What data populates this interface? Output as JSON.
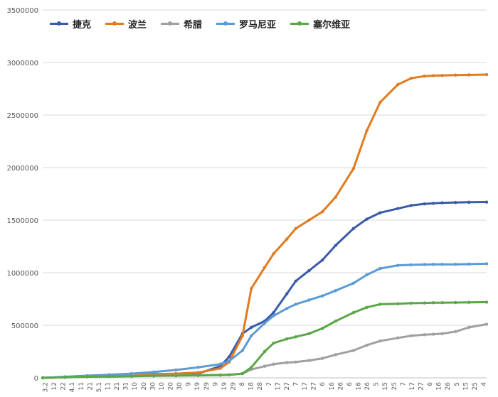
{
  "chart_data": {
    "type": "line",
    "title": "",
    "xlabel": "",
    "ylabel": "",
    "ylim": [
      0,
      3500000
    ],
    "yticks": [
      0,
      500000,
      1000000,
      1500000,
      2000000,
      2500000,
      3000000,
      3500000
    ],
    "ytick_labels": [
      "0",
      "500000",
      "1000000",
      "1500000",
      "2000000",
      "2500000",
      "3000000",
      "3500000"
    ],
    "grid": "horizontal",
    "legend_position": "top-left",
    "x_tick_labels": [
      "3.2",
      "12",
      "22",
      "4.1",
      "11",
      "21",
      "5.1",
      "11",
      "21",
      "31",
      "10",
      "20",
      "30",
      "10",
      "20",
      "30",
      "9",
      "19",
      "29",
      "9",
      "19",
      "29",
      "8",
      "18",
      "28",
      "7",
      "17",
      "27",
      "7",
      "17",
      "27",
      "6",
      "16",
      "26",
      "6",
      "16",
      "26",
      "5",
      "15",
      "25",
      "7",
      "17",
      "27",
      "6",
      "16",
      "26",
      "5",
      "15",
      "25",
      "4"
    ],
    "x": [
      0,
      0.05,
      0.1,
      0.15,
      0.2,
      0.25,
      0.3,
      0.35,
      0.4,
      0.42,
      0.45,
      0.47,
      0.5,
      0.52,
      0.55,
      0.57,
      0.6,
      0.63,
      0.66,
      0.7,
      0.73,
      0.76,
      0.8,
      0.83,
      0.86,
      0.88,
      0.9,
      0.93,
      0.96,
      1.0
    ],
    "series": [
      {
        "name": "捷克",
        "color": "#3a5ba8",
        "values": [
          0,
          5000,
          15000,
          25000,
          30000,
          35000,
          35000,
          40000,
          110000,
          200000,
          420000,
          480000,
          540000,
          620000,
          800000,
          920000,
          1020000,
          1120000,
          1260000,
          1420000,
          1510000,
          1570000,
          1610000,
          1640000,
          1655000,
          1660000,
          1665000,
          1668000,
          1670000,
          1672000
        ]
      },
      {
        "name": "波兰",
        "color": "#e07b20",
        "values": [
          0,
          5000,
          15000,
          25000,
          30000,
          35000,
          40000,
          50000,
          90000,
          150000,
          400000,
          850000,
          1050000,
          1180000,
          1320000,
          1420000,
          1500000,
          1580000,
          1720000,
          1990000,
          2350000,
          2620000,
          2790000,
          2850000,
          2870000,
          2875000,
          2877000,
          2880000,
          2882000,
          2885000
        ]
      },
      {
        "name": "希腊",
        "color": "#a0a0a0",
        "values": [
          0,
          5000,
          10000,
          15000,
          18000,
          20000,
          22000,
          25000,
          28000,
          30000,
          40000,
          80000,
          110000,
          130000,
          145000,
          150000,
          165000,
          185000,
          220000,
          260000,
          310000,
          350000,
          380000,
          400000,
          410000,
          415000,
          420000,
          440000,
          480000,
          510000
        ]
      },
      {
        "name": "罗马尼亚",
        "color": "#5b9bd5",
        "values": [
          0,
          10000,
          20000,
          30000,
          40000,
          55000,
          75000,
          100000,
          130000,
          160000,
          260000,
          400000,
          520000,
          590000,
          660000,
          700000,
          740000,
          780000,
          830000,
          900000,
          980000,
          1040000,
          1070000,
          1075000,
          1078000,
          1080000,
          1080000,
          1080000,
          1082000,
          1085000
        ]
      },
      {
        "name": "塞尔维亚",
        "color": "#5aa747",
        "values": [
          0,
          5000,
          10000,
          12000,
          15000,
          18000,
          20000,
          22000,
          25000,
          28000,
          40000,
          100000,
          250000,
          330000,
          370000,
          390000,
          420000,
          470000,
          540000,
          620000,
          670000,
          700000,
          705000,
          710000,
          712000,
          714000,
          715000,
          716000,
          718000,
          720000
        ]
      }
    ]
  }
}
